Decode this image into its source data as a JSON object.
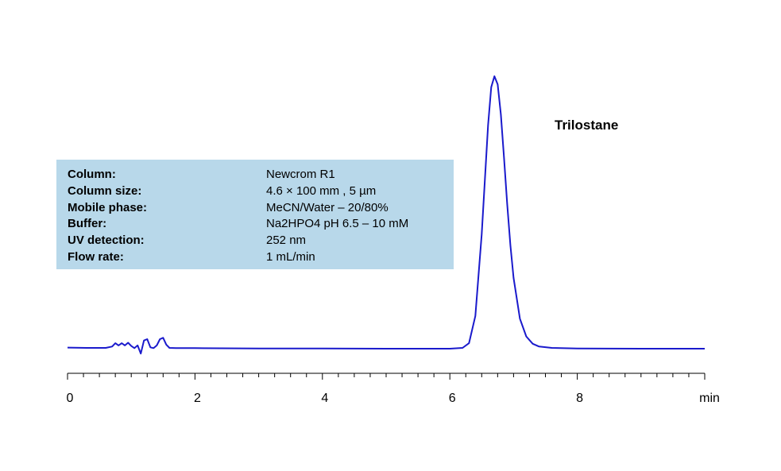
{
  "info": {
    "rows": [
      {
        "key": "Column:",
        "value": "Newcrom R1"
      },
      {
        "key": "Column size:",
        "value": "4.6 × 100 mm , 5 µm"
      },
      {
        "key": "Mobile phase:",
        "value": "MeCN/Water  – 20/80%"
      },
      {
        "key": "Buffer:",
        "value": "Na2HPO4  pH 6.5 – 10 mM"
      },
      {
        "key": "UV detection:",
        "value": "252 nm"
      },
      {
        "key": "Flow rate:",
        "value": "1 mL/min"
      }
    ]
  },
  "chart_data": {
    "type": "line",
    "title": "",
    "xlabel": "min",
    "ylabel": "",
    "xlim": [
      0,
      10
    ],
    "ylim": [
      0,
      1
    ],
    "x_ticks": [
      "0",
      "2",
      "4",
      "6",
      "8"
    ],
    "minor_tick_step": 0.25,
    "line_color": "#1a1acc",
    "grid": false,
    "annotations": [
      {
        "text": "Trilostane",
        "x": 6.7
      }
    ],
    "series": [
      {
        "x": [
          0,
          0.3,
          0.6,
          0.7,
          0.75,
          0.8,
          0.85,
          0.9,
          0.95,
          1.0,
          1.05,
          1.1,
          1.15,
          1.2,
          1.25,
          1.3,
          1.35,
          1.4,
          1.45,
          1.5,
          1.55,
          1.6,
          1.7,
          2.0,
          3.0,
          4.0,
          5.0,
          6.0,
          6.2,
          6.3,
          6.4,
          6.5,
          6.55,
          6.6,
          6.65,
          6.7,
          6.75,
          6.8,
          6.85,
          6.9,
          6.95,
          7.0,
          7.1,
          7.2,
          7.3,
          7.4,
          7.6,
          8.0,
          9.0,
          10.0
        ],
        "y": [
          0.004,
          0.003,
          0.003,
          0.008,
          0.02,
          0.012,
          0.02,
          0.012,
          0.022,
          0.01,
          0.002,
          0.012,
          -0.018,
          0.03,
          0.035,
          0.005,
          0.002,
          0.012,
          0.035,
          0.04,
          0.015,
          0.003,
          0.002,
          0.002,
          0.001,
          0.001,
          0.0,
          0.0,
          0.003,
          0.02,
          0.12,
          0.42,
          0.62,
          0.82,
          0.96,
          1.0,
          0.97,
          0.86,
          0.7,
          0.53,
          0.38,
          0.26,
          0.11,
          0.045,
          0.018,
          0.008,
          0.003,
          0.001,
          0.0,
          0.0
        ]
      }
    ]
  }
}
